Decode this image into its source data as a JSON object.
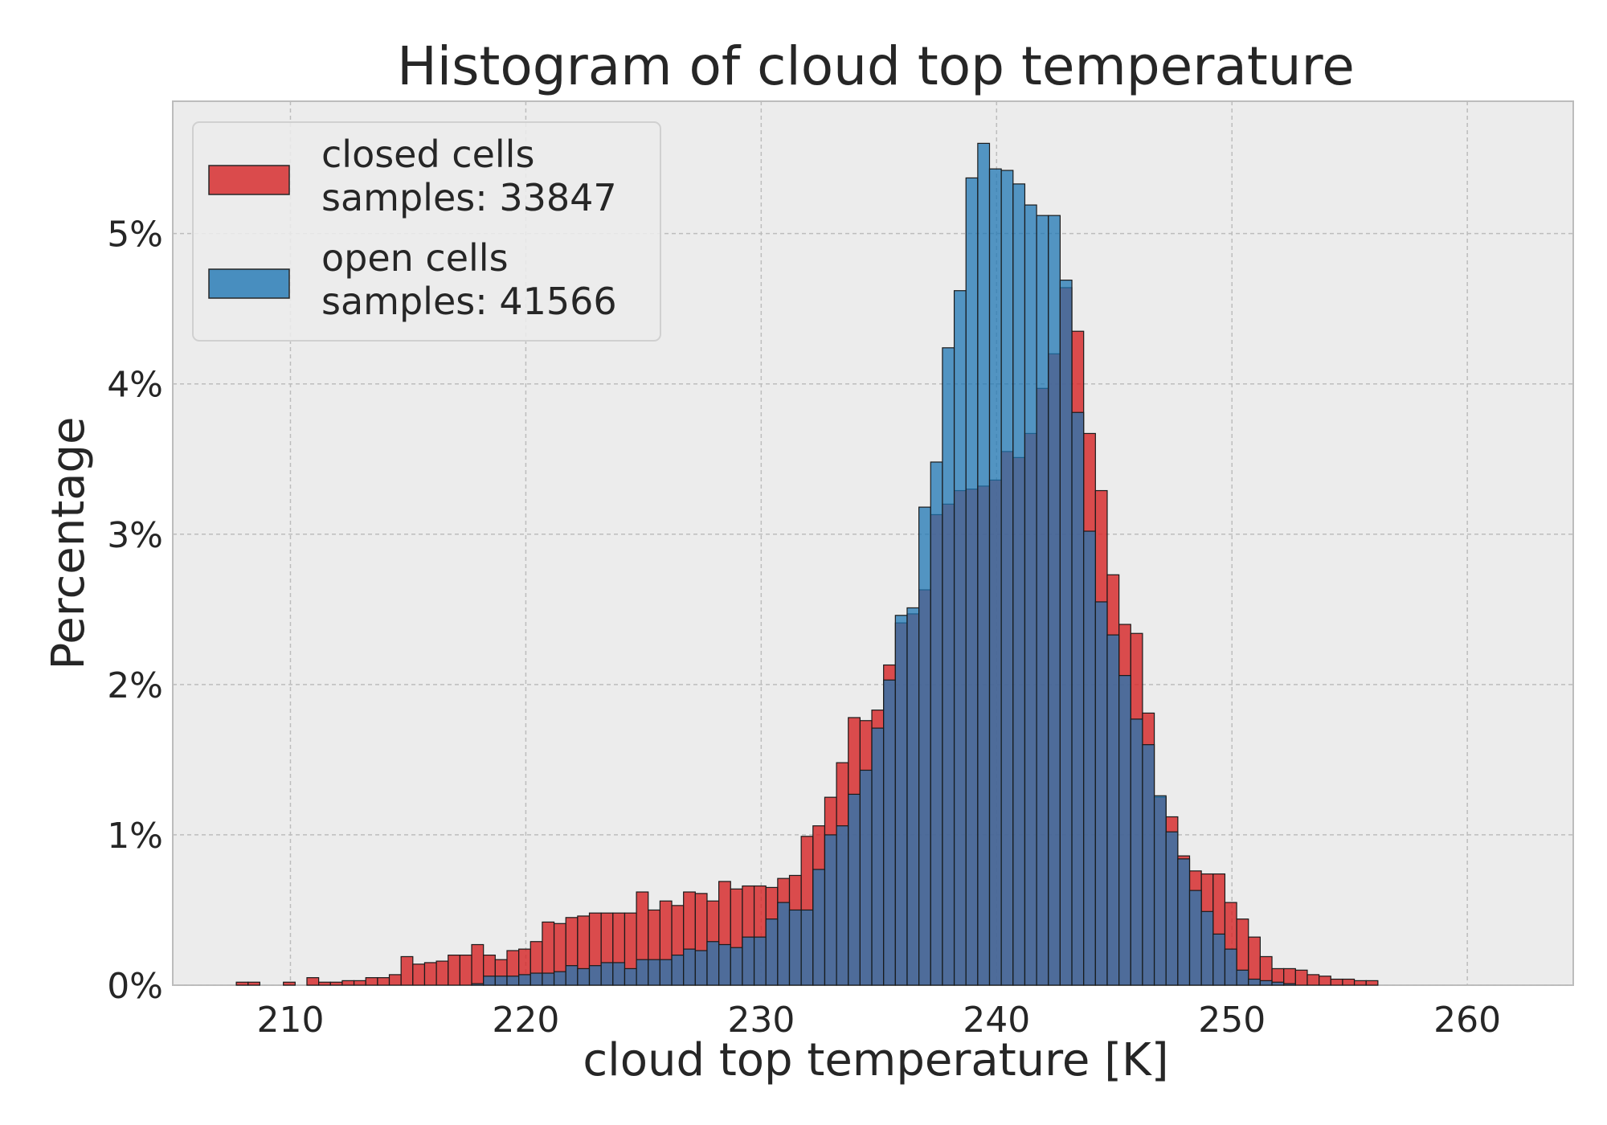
{
  "chart_data": {
    "type": "bar",
    "title": "Histogram of cloud top temperature",
    "xlabel": "cloud top temperature [K]",
    "ylabel": "Percentage",
    "xlim": [
      205,
      264.5
    ],
    "ylim": [
      0,
      5.88
    ],
    "x_ticks": [
      210,
      220,
      230,
      240,
      250,
      260
    ],
    "y_ticks": [
      0,
      1,
      2,
      3,
      4,
      5
    ],
    "y_tick_labels": [
      "0%",
      "1%",
      "2%",
      "3%",
      "4%",
      "5%"
    ],
    "grid": true,
    "legend_position": "top-left",
    "bin_start": 207.7,
    "bin_width": 0.5,
    "series": [
      {
        "name": "closed cells",
        "samples_label": "samples: 33847",
        "color": "#d62728",
        "values": [
          0.02,
          0.02,
          0.0,
          0.0,
          0.02,
          0.0,
          0.05,
          0.02,
          0.02,
          0.03,
          0.03,
          0.05,
          0.05,
          0.07,
          0.19,
          0.14,
          0.15,
          0.16,
          0.2,
          0.2,
          0.27,
          0.2,
          0.17,
          0.23,
          0.24,
          0.29,
          0.42,
          0.41,
          0.45,
          0.46,
          0.48,
          0.48,
          0.48,
          0.48,
          0.62,
          0.5,
          0.56,
          0.53,
          0.62,
          0.61,
          0.56,
          0.69,
          0.64,
          0.66,
          0.66,
          0.65,
          0.71,
          0.73,
          0.99,
          1.06,
          1.25,
          1.48,
          1.78,
          1.76,
          1.83,
          2.13,
          2.41,
          2.47,
          2.63,
          3.13,
          3.2,
          3.29,
          3.3,
          3.32,
          3.36,
          3.55,
          3.51,
          3.67,
          3.97,
          4.2,
          4.64,
          4.35,
          3.67,
          3.29,
          2.73,
          2.4,
          2.34,
          1.81,
          1.25,
          1.12,
          0.86,
          0.76,
          0.74,
          0.74,
          0.55,
          0.44,
          0.32,
          0.19,
          0.11,
          0.11,
          0.1,
          0.07,
          0.06,
          0.04,
          0.04,
          0.03,
          0.03
        ],
        "values_offset": 0
      },
      {
        "name": "open cells",
        "samples_label": "samples: 41566",
        "color": "#1f77b4",
        "values": [
          0.0,
          0.0,
          0.0,
          0.0,
          0.0,
          0.0,
          0.0,
          0.0,
          0.0,
          0.0,
          0.0,
          0.0,
          0.0,
          0.0,
          0.0,
          0.0,
          0.0,
          0.0,
          0.0,
          0.0,
          0.01,
          0.06,
          0.06,
          0.06,
          0.07,
          0.08,
          0.08,
          0.09,
          0.13,
          0.11,
          0.13,
          0.15,
          0.15,
          0.11,
          0.17,
          0.17,
          0.17,
          0.2,
          0.24,
          0.23,
          0.29,
          0.27,
          0.25,
          0.32,
          0.32,
          0.44,
          0.55,
          0.5,
          0.5,
          0.77,
          1.0,
          1.06,
          1.27,
          1.43,
          1.71,
          2.03,
          2.46,
          2.51,
          3.18,
          3.48,
          4.24,
          4.62,
          5.37,
          5.6,
          5.43,
          5.42,
          5.33,
          5.19,
          5.12,
          5.12,
          4.69,
          3.81,
          3.02,
          2.55,
          2.33,
          2.06,
          1.77,
          1.6,
          1.26,
          1.02,
          0.84,
          0.63,
          0.49,
          0.34,
          0.24,
          0.1,
          0.04,
          0.03,
          0.02,
          0.01
        ],
        "values_offset": 0
      }
    ]
  }
}
